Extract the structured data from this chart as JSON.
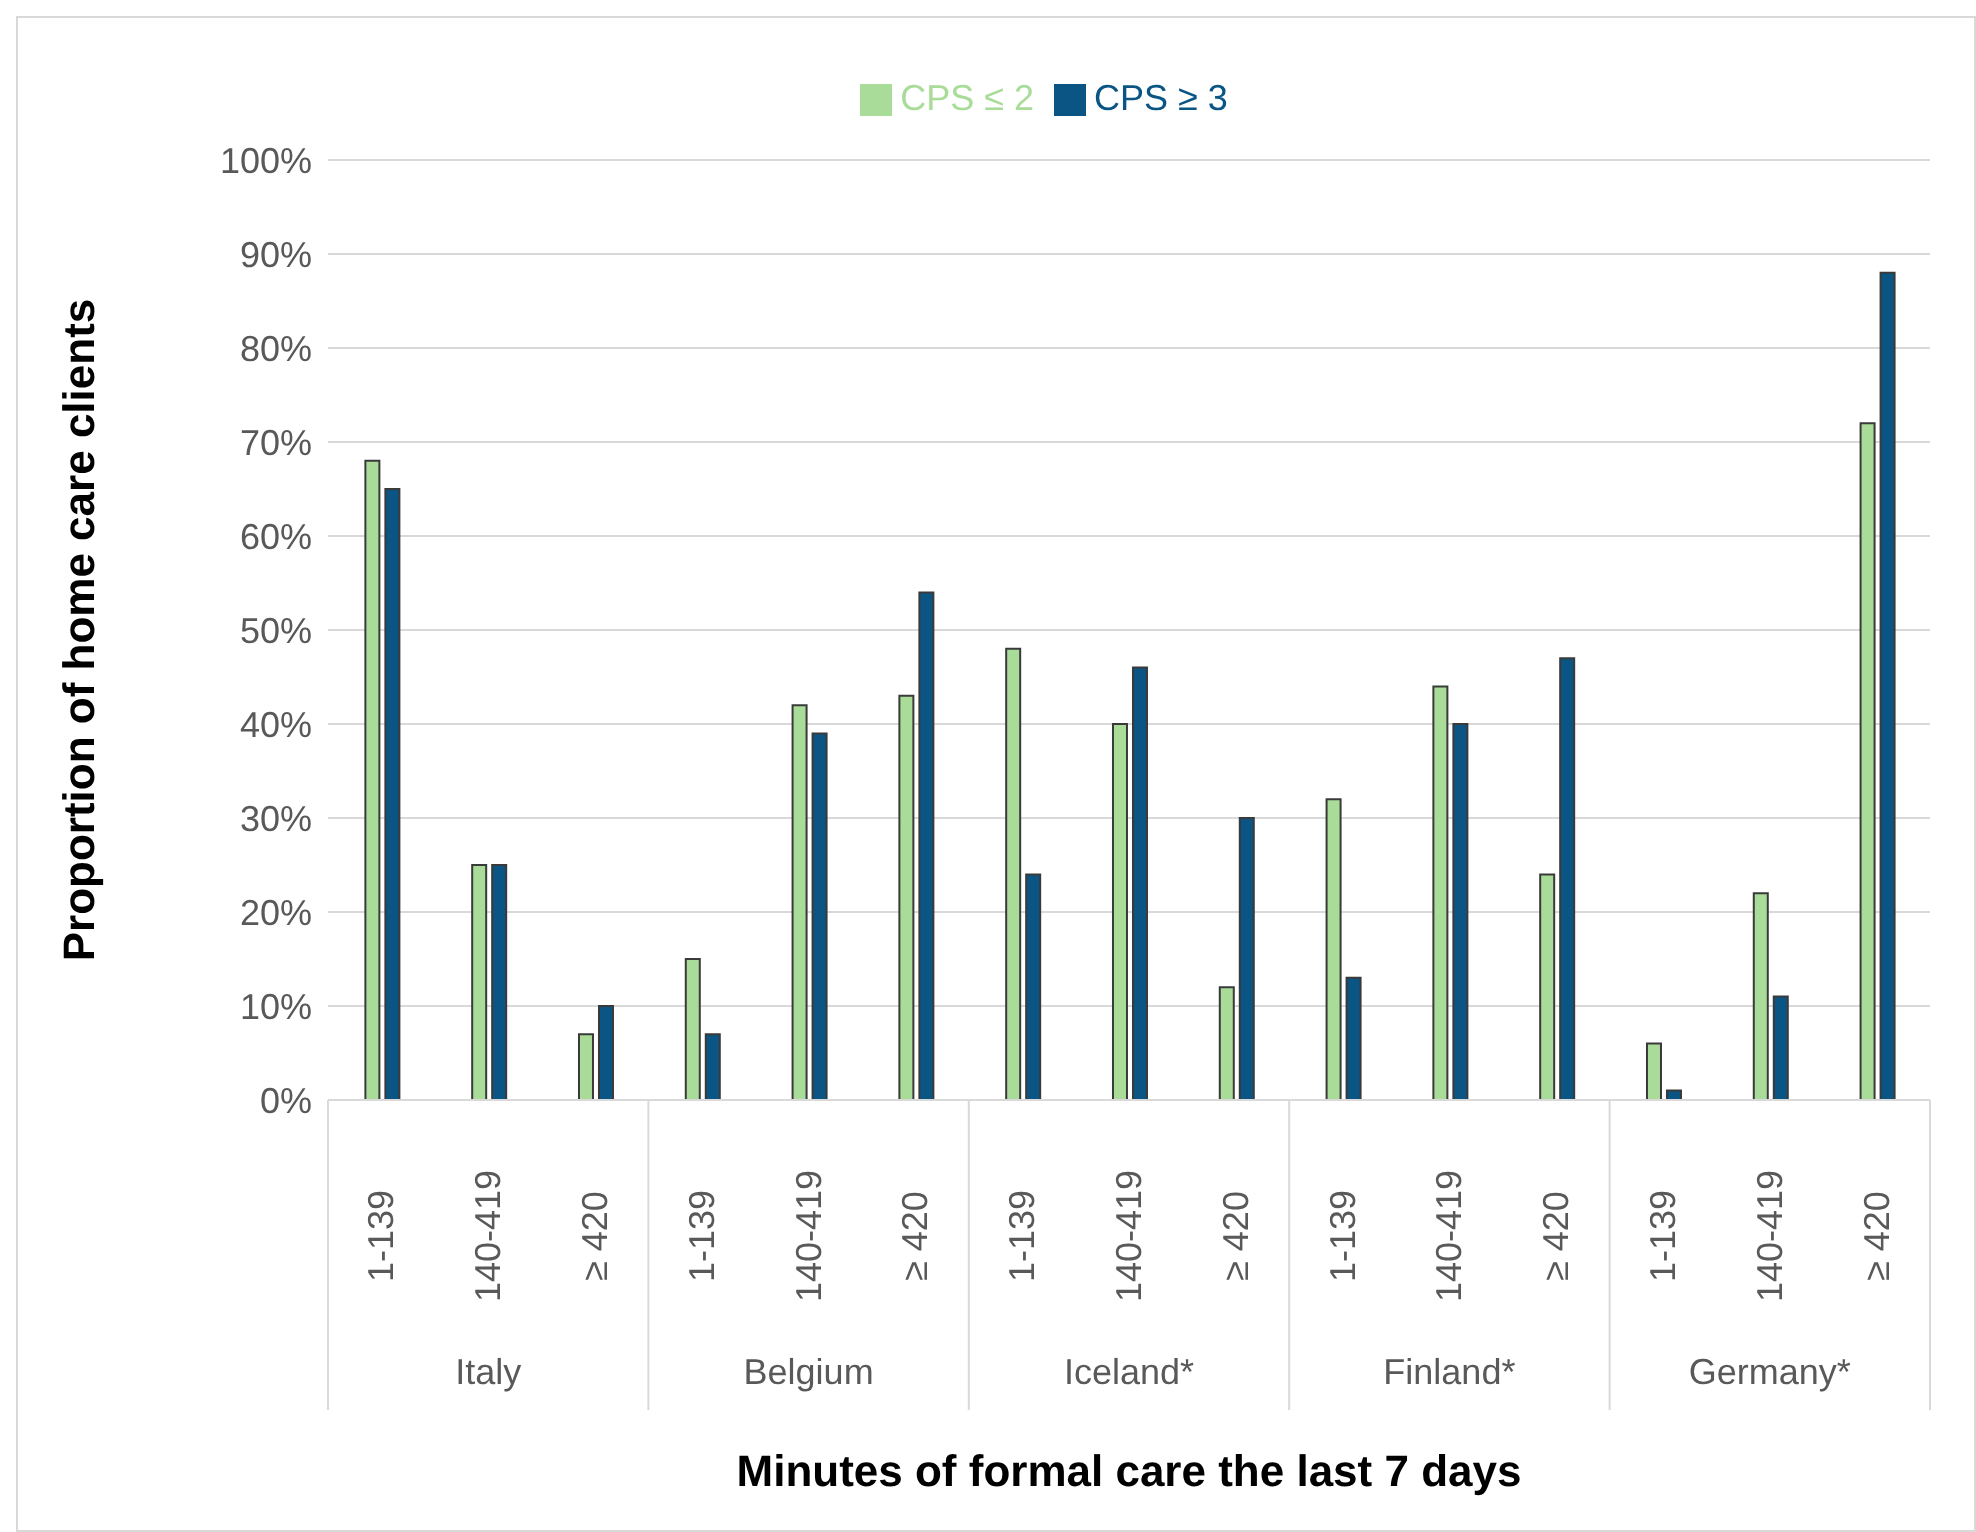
{
  "chart_data": {
    "type": "bar",
    "xlabel": "Minutes of formal care the last 7 days",
    "ylabel": "Proportion of home care clients",
    "categories": [
      "1-139",
      "140-419",
      "≥ 420",
      "1-139",
      "140-419",
      "≥ 420",
      "1-139",
      "140-419",
      "≥ 420",
      "1-139",
      "140-419",
      "≥ 420",
      "1-139",
      "140-419",
      "≥ 420"
    ],
    "annotations": [
      "Italy",
      "Belgium",
      "Iceland*",
      "Finland*",
      "Germany*"
    ],
    "series": [
      {
        "name": "CPS ≤ 2",
        "color": "#a9dc98",
        "values": [
          68,
          25,
          7,
          15,
          42,
          43,
          48,
          40,
          12,
          32,
          44,
          24,
          6,
          22,
          72
        ]
      },
      {
        "name": "CPS ≥ 3",
        "color": "#0b5584",
        "values": [
          65,
          25,
          10,
          7,
          39,
          54,
          24,
          46,
          30,
          13,
          40,
          47,
          1,
          11,
          88
        ]
      }
    ],
    "ylim": [
      0,
      100
    ],
    "yticks": [
      {
        "value": 0,
        "label": "0%"
      },
      {
        "value": 10,
        "label": "10%"
      },
      {
        "value": 20,
        "label": "20%"
      },
      {
        "value": 30,
        "label": "30%"
      },
      {
        "value": 40,
        "label": "40%"
      },
      {
        "value": 50,
        "label": "50%"
      },
      {
        "value": 60,
        "label": "60%"
      },
      {
        "value": 70,
        "label": "70%"
      },
      {
        "value": 80,
        "label": "80%"
      },
      {
        "value": 90,
        "label": "90%"
      },
      {
        "value": 100,
        "label": "100%"
      }
    ],
    "grid": "y",
    "legend": "top"
  }
}
